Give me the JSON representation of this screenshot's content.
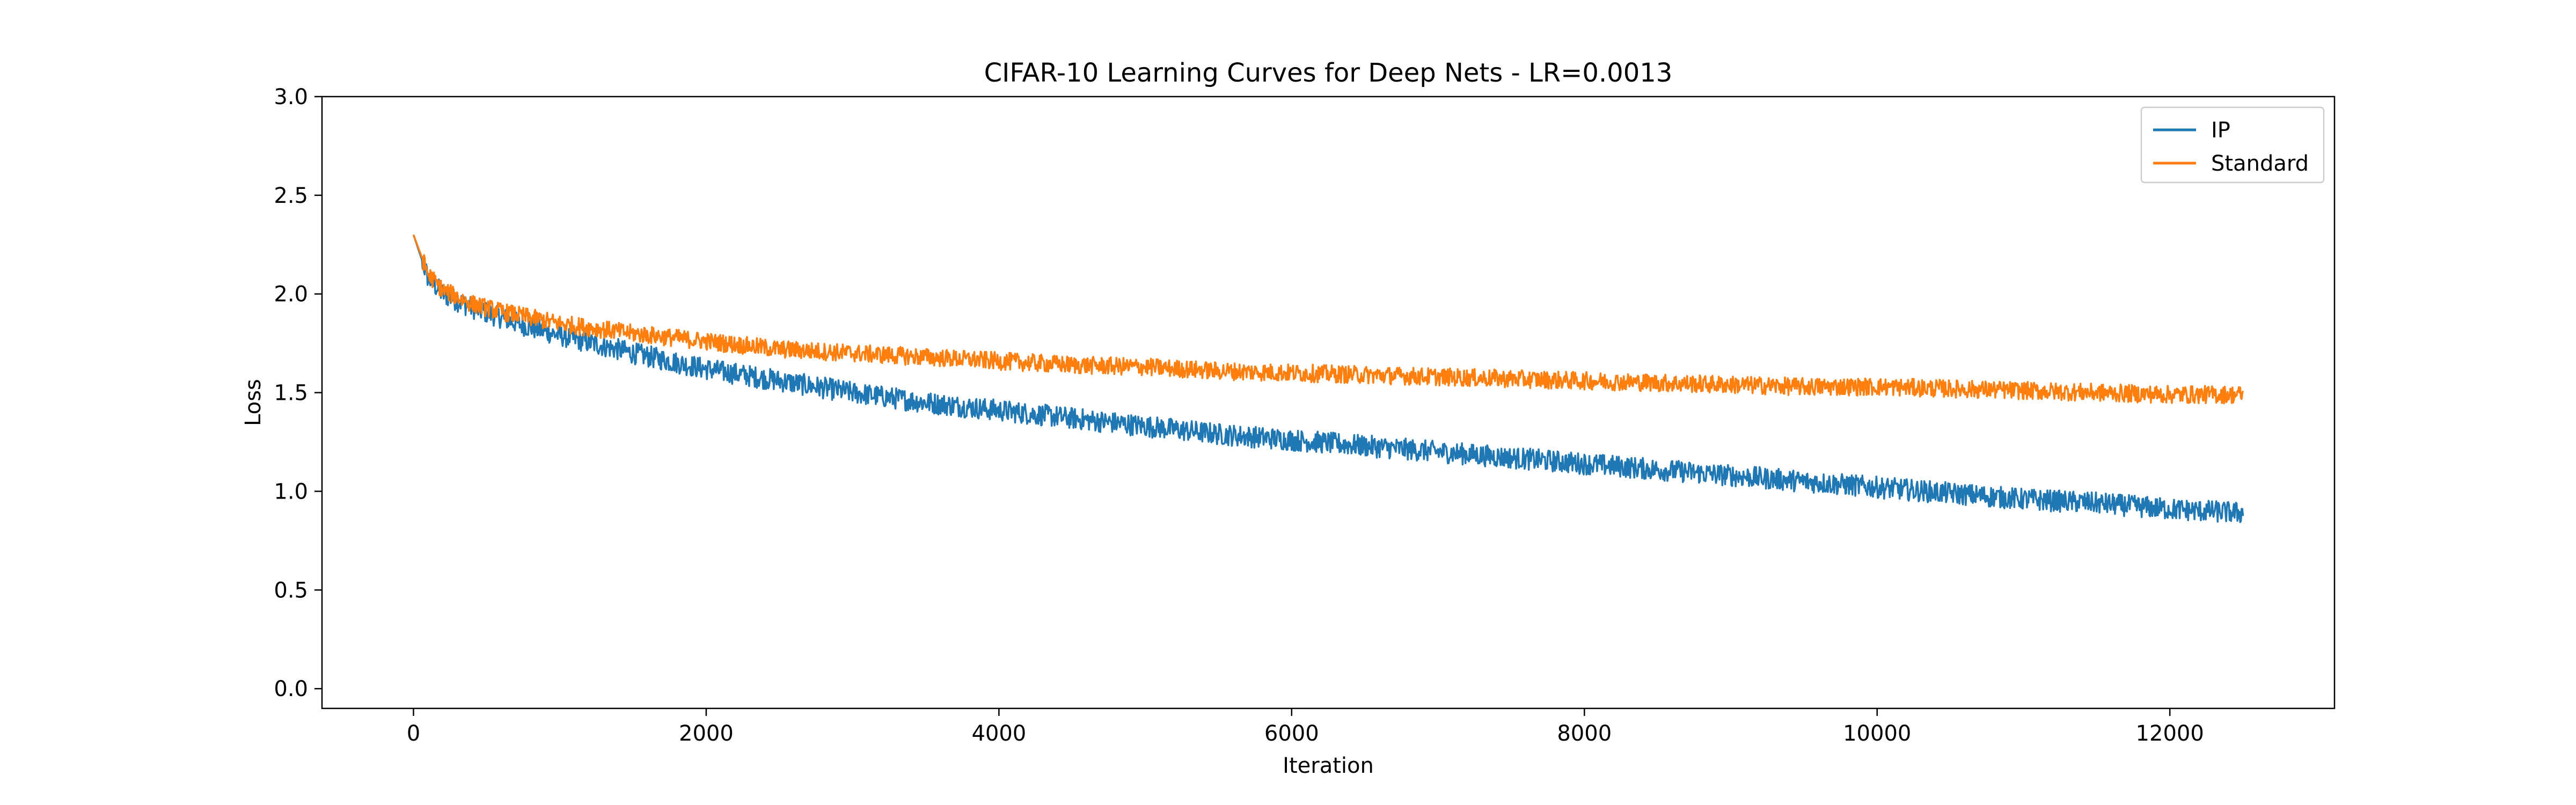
{
  "chart_data": {
    "type": "line",
    "title": "CIFAR-10 Learning Curves for Deep Nets - LR=0.0013",
    "xlabel": "Iteration",
    "ylabel": "Loss",
    "xlim": [
      -625,
      13125
    ],
    "ylim": [
      -0.1,
      3.0
    ],
    "xticks": [
      0,
      2000,
      4000,
      6000,
      8000,
      10000,
      12000
    ],
    "yticks": [
      0.0,
      0.5,
      1.0,
      1.5,
      2.0,
      2.5,
      3.0
    ],
    "xtick_labels": [
      "0",
      "2000",
      "4000",
      "6000",
      "8000",
      "10000",
      "12000"
    ],
    "ytick_labels": [
      "0.0",
      "0.5",
      "1.0",
      "1.5",
      "2.0",
      "2.5",
      "3.0"
    ],
    "grid": false,
    "legend_position": "top-right",
    "series": [
      {
        "name": "IP",
        "color": "#1f77b4",
        "x": [
          0,
          100,
          200,
          400,
          600,
          800,
          1000,
          1500,
          2000,
          2500,
          3000,
          3500,
          4000,
          4500,
          5000,
          5500,
          6000,
          6500,
          7000,
          7500,
          8000,
          8500,
          9000,
          9500,
          10000,
          10500,
          11000,
          11500,
          12000,
          12500
        ],
        "y": [
          2.3,
          2.08,
          2.0,
          1.93,
          1.88,
          1.83,
          1.79,
          1.7,
          1.62,
          1.56,
          1.5,
          1.45,
          1.41,
          1.37,
          1.33,
          1.29,
          1.26,
          1.23,
          1.2,
          1.17,
          1.14,
          1.11,
          1.08,
          1.05,
          1.02,
          0.99,
          0.96,
          0.94,
          0.91,
          0.89
        ]
      },
      {
        "name": "Standard",
        "color": "#ff7f0e",
        "x": [
          0,
          100,
          200,
          400,
          600,
          800,
          1000,
          1500,
          2000,
          2500,
          3000,
          3500,
          4000,
          4500,
          5000,
          5500,
          6000,
          6500,
          7000,
          7500,
          8000,
          8500,
          9000,
          9500,
          10000,
          10500,
          11000,
          11500,
          12000,
          12500
        ],
        "y": [
          2.3,
          2.1,
          2.02,
          1.95,
          1.91,
          1.88,
          1.85,
          1.8,
          1.76,
          1.72,
          1.7,
          1.68,
          1.66,
          1.64,
          1.63,
          1.61,
          1.6,
          1.59,
          1.58,
          1.57,
          1.56,
          1.55,
          1.54,
          1.53,
          1.53,
          1.52,
          1.51,
          1.5,
          1.49,
          1.49
        ]
      }
    ]
  }
}
